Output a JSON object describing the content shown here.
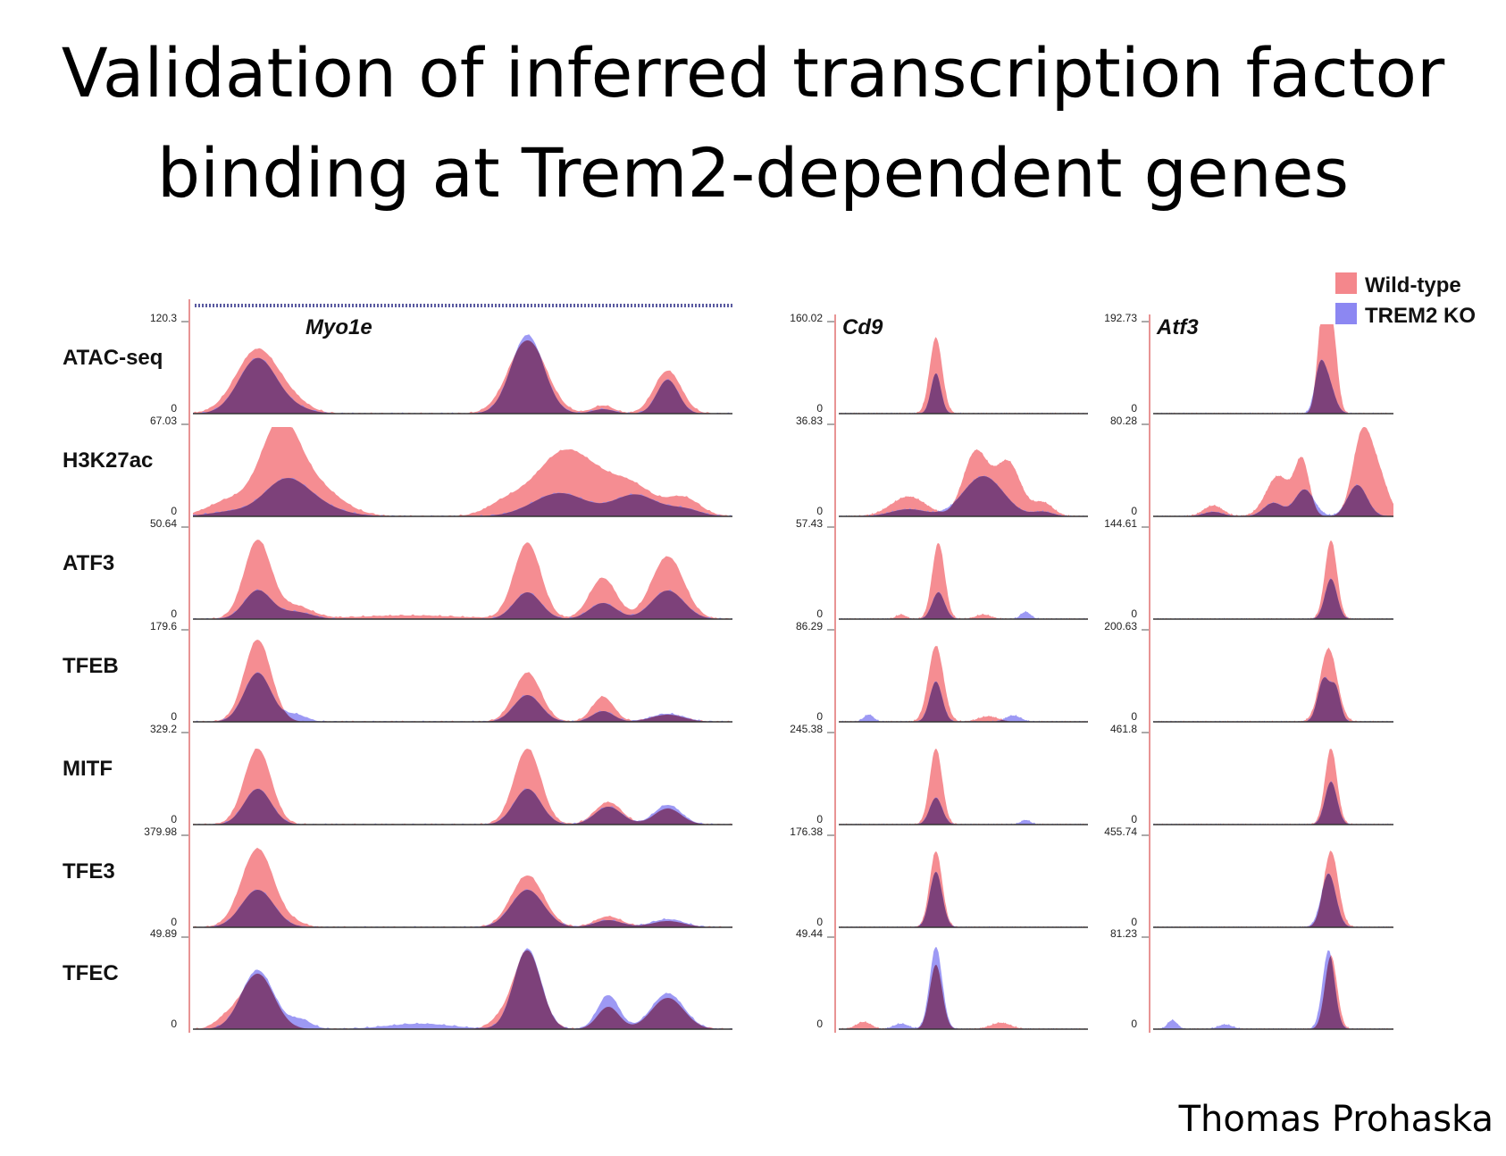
{
  "slide": {
    "title_line1": "Validation of inferred transcription factor",
    "title_line2": "binding at Trem2-dependent genes",
    "author": "Thomas Prohaska"
  },
  "chart_data": {
    "type": "area",
    "title": "Validation of inferred transcription factor binding at Trem2-dependent genes",
    "colors": {
      "wild_type": "#f4878c",
      "trem2_ko": "#8c87f2",
      "overlap": "#7a3a6e",
      "axis": "#e07070",
      "baseline": "#333333",
      "gene_track": "#5a5aa0"
    },
    "legend": {
      "placement": "top-right",
      "entries": [
        {
          "name": "Wild-type",
          "color": "#f4878c"
        },
        {
          "name": "TREM2 KO",
          "color": "#8c87f2"
        }
      ]
    },
    "tracks": [
      "ATAC-seq",
      "H3K27ac",
      "ATF3",
      "TFEB",
      "MITF",
      "TFE3",
      "TFEC"
    ],
    "loci": [
      {
        "gene": "Myo1e",
        "has_gene_track": true,
        "ymax": [
          "120.3",
          "67.03",
          "50.64",
          "179.6",
          "329.2",
          "379.98",
          "49.89"
        ],
        "ymin": [
          "0",
          "0",
          "0",
          "0",
          "0",
          "0",
          "0"
        ],
        "series": [
          {
            "track": "ATAC-seq",
            "wild_type": [
              [
                0.12,
                0.04,
                0.72
              ],
              [
                0.19,
                0.03,
                0.08
              ],
              [
                0.62,
                0.035,
                0.82
              ],
              [
                0.76,
                0.02,
                0.09
              ],
              [
                0.88,
                0.025,
                0.48
              ]
            ],
            "trem2_ko": [
              [
                0.12,
                0.035,
                0.62
              ],
              [
                0.19,
                0.03,
                0.05
              ],
              [
                0.62,
                0.03,
                0.88
              ],
              [
                0.76,
                0.02,
                0.05
              ],
              [
                0.88,
                0.02,
                0.38
              ]
            ]
          },
          {
            "track": "H3K27ac",
            "wild_type": [
              [
                0.07,
                0.04,
                0.18
              ],
              [
                0.16,
                0.035,
                0.92
              ],
              [
                0.22,
                0.05,
                0.35
              ],
              [
                0.58,
                0.035,
                0.14
              ],
              [
                0.68,
                0.05,
                0.62
              ],
              [
                0.75,
                0.05,
                0.28
              ],
              [
                0.82,
                0.04,
                0.26
              ],
              [
                0.91,
                0.03,
                0.2
              ]
            ],
            "trem2_ko": [
              [
                0.07,
                0.04,
                0.05
              ],
              [
                0.17,
                0.04,
                0.35
              ],
              [
                0.22,
                0.05,
                0.12
              ],
              [
                0.68,
                0.05,
                0.26
              ],
              [
                0.82,
                0.04,
                0.24
              ],
              [
                0.91,
                0.03,
                0.08
              ]
            ]
          },
          {
            "track": "ATF3",
            "wild_type": [
              [
                0.12,
                0.025,
                0.88
              ],
              [
                0.19,
                0.03,
                0.14
              ],
              [
                0.62,
                0.025,
                0.85
              ],
              [
                0.76,
                0.025,
                0.46
              ],
              [
                0.88,
                0.03,
                0.7
              ],
              [
                0.4,
                0.1,
                0.04
              ]
            ],
            "trem2_ko": [
              [
                0.12,
                0.025,
                0.32
              ],
              [
                0.19,
                0.03,
                0.08
              ],
              [
                0.62,
                0.025,
                0.3
              ],
              [
                0.76,
                0.025,
                0.18
              ],
              [
                0.88,
                0.03,
                0.32
              ]
            ]
          },
          {
            "track": "TFEB",
            "wild_type": [
              [
                0.12,
                0.025,
                0.92
              ],
              [
                0.62,
                0.025,
                0.55
              ],
              [
                0.76,
                0.02,
                0.28
              ],
              [
                0.88,
                0.03,
                0.08
              ]
            ],
            "trem2_ko": [
              [
                0.12,
                0.025,
                0.55
              ],
              [
                0.62,
                0.025,
                0.3
              ],
              [
                0.76,
                0.02,
                0.12
              ],
              [
                0.19,
                0.02,
                0.08
              ],
              [
                0.88,
                0.03,
                0.09
              ]
            ]
          },
          {
            "track": "MITF",
            "wild_type": [
              [
                0.12,
                0.025,
                0.85
              ],
              [
                0.62,
                0.025,
                0.85
              ],
              [
                0.77,
                0.025,
                0.25
              ],
              [
                0.88,
                0.025,
                0.18
              ]
            ],
            "trem2_ko": [
              [
                0.12,
                0.025,
                0.4
              ],
              [
                0.62,
                0.025,
                0.4
              ],
              [
                0.77,
                0.025,
                0.2
              ],
              [
                0.88,
                0.025,
                0.22
              ]
            ]
          },
          {
            "track": "TFE3",
            "wild_type": [
              [
                0.12,
                0.03,
                0.88
              ],
              [
                0.19,
                0.02,
                0.04
              ],
              [
                0.62,
                0.03,
                0.58
              ],
              [
                0.77,
                0.025,
                0.12
              ],
              [
                0.88,
                0.03,
                0.07
              ]
            ],
            "trem2_ko": [
              [
                0.12,
                0.03,
                0.42
              ],
              [
                0.62,
                0.03,
                0.42
              ],
              [
                0.77,
                0.025,
                0.08
              ],
              [
                0.88,
                0.03,
                0.09
              ]
            ]
          },
          {
            "track": "TFEC",
            "wild_type": [
              [
                0.12,
                0.03,
                0.62
              ],
              [
                0.62,
                0.025,
                0.88
              ],
              [
                0.77,
                0.02,
                0.25
              ],
              [
                0.88,
                0.03,
                0.35
              ],
              [
                0.06,
                0.02,
                0.1
              ],
              [
                0.57,
                0.02,
                0.1
              ]
            ],
            "trem2_ko": [
              [
                0.12,
                0.03,
                0.66
              ],
              [
                0.62,
                0.025,
                0.9
              ],
              [
                0.77,
                0.02,
                0.38
              ],
              [
                0.88,
                0.03,
                0.4
              ],
              [
                0.2,
                0.02,
                0.1
              ],
              [
                0.42,
                0.06,
                0.06
              ]
            ]
          }
        ]
      },
      {
        "gene": "Cd9",
        "has_gene_track": false,
        "ymax": [
          "160.02",
          "36.83",
          "57.43",
          "86.29",
          "245.38",
          "176.38",
          "49.44"
        ],
        "ymin": [
          "0",
          "0",
          "0",
          "0",
          "0",
          "0",
          "0"
        ],
        "series": [
          {
            "track": "ATAC-seq",
            "wild_type": [
              [
                0.39,
                0.025,
                0.85
              ]
            ],
            "trem2_ko": [
              [
                0.39,
                0.02,
                0.45
              ]
            ]
          },
          {
            "track": "H3K27ac",
            "wild_type": [
              [
                0.28,
                0.07,
                0.22
              ],
              [
                0.55,
                0.05,
                0.72
              ],
              [
                0.68,
                0.05,
                0.6
              ],
              [
                0.82,
                0.04,
                0.15
              ]
            ],
            "trem2_ko": [
              [
                0.28,
                0.07,
                0.08
              ],
              [
                0.58,
                0.08,
                0.45
              ],
              [
                0.82,
                0.04,
                0.05
              ]
            ]
          },
          {
            "track": "ATF3",
            "wild_type": [
              [
                0.4,
                0.025,
                0.85
              ],
              [
                0.25,
                0.02,
                0.05
              ],
              [
                0.58,
                0.03,
                0.05
              ]
            ],
            "trem2_ko": [
              [
                0.4,
                0.025,
                0.3
              ],
              [
                0.75,
                0.02,
                0.08
              ]
            ]
          },
          {
            "track": "TFEB",
            "wild_type": [
              [
                0.39,
                0.03,
                0.85
              ],
              [
                0.6,
                0.04,
                0.06
              ]
            ],
            "trem2_ko": [
              [
                0.39,
                0.025,
                0.45
              ],
              [
                0.12,
                0.02,
                0.08
              ],
              [
                0.7,
                0.03,
                0.07
              ]
            ]
          },
          {
            "track": "MITF",
            "wild_type": [
              [
                0.39,
                0.025,
                0.85
              ]
            ],
            "trem2_ko": [
              [
                0.39,
                0.025,
                0.3
              ],
              [
                0.75,
                0.02,
                0.05
              ]
            ]
          },
          {
            "track": "TFE3",
            "wild_type": [
              [
                0.39,
                0.025,
                0.85
              ]
            ],
            "trem2_ko": [
              [
                0.39,
                0.025,
                0.62
              ]
            ]
          },
          {
            "track": "TFEC",
            "wild_type": [
              [
                0.39,
                0.025,
                0.72
              ],
              [
                0.1,
                0.03,
                0.08
              ],
              [
                0.65,
                0.04,
                0.07
              ]
            ],
            "trem2_ko": [
              [
                0.39,
                0.025,
                0.92
              ],
              [
                0.25,
                0.03,
                0.06
              ]
            ]
          }
        ]
      },
      {
        "gene": "Atf3",
        "has_gene_track": false,
        "ymax": [
          "192.73",
          "80.28",
          "144.61",
          "200.63",
          "461.8",
          "455.74",
          "81.23"
        ],
        "ymin": [
          "0",
          "0",
          "0",
          "0",
          "0",
          "0",
          "0"
        ],
        "series": [
          {
            "track": "ATAC-seq",
            "wild_type": [
              [
                0.72,
                0.025,
                0.8
              ],
              [
                0.7,
                0.02,
                0.55
              ],
              [
                0.75,
                0.02,
                0.6
              ]
            ],
            "trem2_ko": [
              [
                0.72,
                0.03,
                0.42
              ],
              [
                0.69,
                0.02,
                0.3
              ]
            ]
          },
          {
            "track": "H3K27ac",
            "wild_type": [
              [
                0.25,
                0.04,
                0.12
              ],
              [
                0.52,
                0.05,
                0.45
              ],
              [
                0.62,
                0.03,
                0.6
              ],
              [
                0.87,
                0.04,
                0.9
              ],
              [
                0.94,
                0.04,
                0.4
              ]
            ],
            "trem2_ko": [
              [
                0.25,
                0.04,
                0.05
              ],
              [
                0.5,
                0.04,
                0.15
              ],
              [
                0.63,
                0.04,
                0.3
              ],
              [
                0.85,
                0.04,
                0.35
              ]
            ]
          },
          {
            "track": "ATF3",
            "wild_type": [
              [
                0.74,
                0.025,
                0.88
              ]
            ],
            "trem2_ko": [
              [
                0.74,
                0.025,
                0.45
              ]
            ]
          },
          {
            "track": "TFEB",
            "wild_type": [
              [
                0.73,
                0.035,
                0.82
              ]
            ],
            "trem2_ko": [
              [
                0.71,
                0.025,
                0.48
              ],
              [
                0.76,
                0.02,
                0.35
              ]
            ]
          },
          {
            "track": "MITF",
            "wild_type": [
              [
                0.74,
                0.025,
                0.85
              ]
            ],
            "trem2_ko": [
              [
                0.74,
                0.025,
                0.48
              ]
            ]
          },
          {
            "track": "TFE3",
            "wild_type": [
              [
                0.74,
                0.03,
                0.85
              ]
            ],
            "trem2_ko": [
              [
                0.73,
                0.03,
                0.6
              ]
            ]
          },
          {
            "track": "TFEC",
            "wild_type": [
              [
                0.74,
                0.025,
                0.82
              ]
            ],
            "trem2_ko": [
              [
                0.73,
                0.025,
                0.88
              ],
              [
                0.08,
                0.02,
                0.1
              ],
              [
                0.3,
                0.03,
                0.05
              ]
            ]
          }
        ]
      }
    ]
  }
}
